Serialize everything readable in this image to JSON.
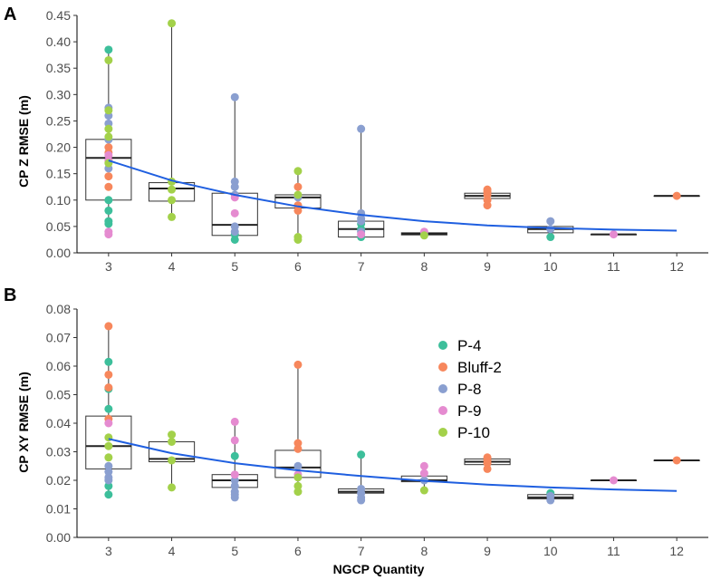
{
  "chart_data": [
    {
      "type": "box-scatter",
      "panel_label": "A",
      "ylabel": "CP Z RMSE (m)",
      "xlabel": "",
      "x_ticks": [
        3,
        4,
        5,
        6,
        7,
        8,
        9,
        10,
        11,
        12
      ],
      "ylim": [
        0,
        0.45
      ],
      "y_ticks": [
        {
          "v": 0.0,
          "label": "0.00"
        },
        {
          "v": 0.05,
          "label": "0.05"
        },
        {
          "v": 0.1,
          "label": "0.10"
        },
        {
          "v": 0.15,
          "label": "0.15"
        },
        {
          "v": 0.2,
          "label": "0.20"
        },
        {
          "v": 0.25,
          "label": "0.25"
        },
        {
          "v": 0.3,
          "label": "0.30"
        },
        {
          "v": 0.35,
          "label": "0.35"
        },
        {
          "v": 0.4,
          "label": "0.40"
        },
        {
          "v": 0.45,
          "label": "0.45"
        }
      ],
      "boxes": [
        {
          "x": 3,
          "min": 0.035,
          "q1": 0.1,
          "median": 0.18,
          "q3": 0.215,
          "max": 0.385
        },
        {
          "x": 4,
          "min": 0.068,
          "q1": 0.098,
          "median": 0.122,
          "q3": 0.133,
          "max": 0.435
        },
        {
          "x": 5,
          "min": 0.027,
          "q1": 0.033,
          "median": 0.053,
          "q3": 0.113,
          "max": 0.295
        },
        {
          "x": 6,
          "min": 0.025,
          "q1": 0.085,
          "median": 0.105,
          "q3": 0.11,
          "max": 0.155
        },
        {
          "x": 7,
          "min": 0.028,
          "q1": 0.03,
          "median": 0.045,
          "q3": 0.06,
          "max": 0.235
        },
        {
          "x": 8,
          "min": 0.033,
          "q1": 0.034,
          "median": 0.036,
          "q3": 0.038,
          "max": 0.04
        },
        {
          "x": 9,
          "min": 0.088,
          "q1": 0.103,
          "median": 0.108,
          "q3": 0.113,
          "max": 0.123
        },
        {
          "x": 10,
          "min": 0.028,
          "q1": 0.038,
          "median": 0.045,
          "q3": 0.05,
          "max": 0.06
        },
        {
          "x": 11,
          "min": 0.035,
          "q1": 0.035,
          "median": 0.035,
          "q3": 0.035,
          "max": 0.035
        },
        {
          "x": 12,
          "min": 0.108,
          "q1": 0.108,
          "median": 0.108,
          "q3": 0.108,
          "max": 0.108
        }
      ],
      "series": [
        {
          "name": "P-4",
          "values": [
            [
              3,
              0.385
            ],
            [
              3,
              0.215
            ],
            [
              3,
              0.1
            ],
            [
              3,
              0.08
            ],
            [
              3,
              0.06
            ],
            [
              3,
              0.055
            ],
            [
              5,
              0.035
            ],
            [
              5,
              0.025
            ],
            [
              7,
              0.055
            ],
            [
              7,
              0.045
            ],
            [
              7,
              0.03
            ],
            [
              8,
              0.035
            ],
            [
              10,
              0.03
            ]
          ]
        },
        {
          "name": "Bluff-2",
          "values": [
            [
              3,
              0.2
            ],
            [
              3,
              0.19
            ],
            [
              3,
              0.145
            ],
            [
              3,
              0.125
            ],
            [
              6,
              0.125
            ],
            [
              6,
              0.09
            ],
            [
              6,
              0.08
            ],
            [
              9,
              0.12
            ],
            [
              9,
              0.115
            ],
            [
              9,
              0.11
            ],
            [
              9,
              0.1
            ],
            [
              9,
              0.09
            ],
            [
              12,
              0.108
            ]
          ]
        },
        {
          "name": "P-8",
          "values": [
            [
              3,
              0.275
            ],
            [
              3,
              0.26
            ],
            [
              3,
              0.245
            ],
            [
              3,
              0.215
            ],
            [
              3,
              0.16
            ],
            [
              5,
              0.295
            ],
            [
              5,
              0.135
            ],
            [
              5,
              0.125
            ],
            [
              5,
              0.11
            ],
            [
              5,
              0.05
            ],
            [
              5,
              0.04
            ],
            [
              6,
              0.105
            ],
            [
              7,
              0.235
            ],
            [
              7,
              0.075
            ],
            [
              7,
              0.065
            ],
            [
              7,
              0.06
            ],
            [
              7,
              0.04
            ],
            [
              10,
              0.06
            ],
            [
              10,
              0.045
            ]
          ]
        },
        {
          "name": "P-9",
          "values": [
            [
              3,
              0.185
            ],
            [
              3,
              0.175
            ],
            [
              3,
              0.04
            ],
            [
              3,
              0.035
            ],
            [
              5,
              0.105
            ],
            [
              5,
              0.075
            ],
            [
              7,
              0.035
            ],
            [
              8,
              0.04
            ],
            [
              11,
              0.035
            ]
          ]
        },
        {
          "name": "P-10",
          "values": [
            [
              3,
              0.365
            ],
            [
              3,
              0.27
            ],
            [
              3,
              0.235
            ],
            [
              3,
              0.22
            ],
            [
              3,
              0.17
            ],
            [
              4,
              0.435
            ],
            [
              4,
              0.135
            ],
            [
              4,
              0.12
            ],
            [
              4,
              0.1
            ],
            [
              4,
              0.068
            ],
            [
              6,
              0.155
            ],
            [
              6,
              0.11
            ],
            [
              6,
              0.03
            ],
            [
              6,
              0.025
            ],
            [
              8,
              0.033
            ]
          ]
        }
      ],
      "trend": [
        [
          3,
          0.175
        ],
        [
          4,
          0.137
        ],
        [
          5,
          0.11
        ],
        [
          6,
          0.088
        ],
        [
          7,
          0.072
        ],
        [
          8,
          0.06
        ],
        [
          9,
          0.052
        ],
        [
          10,
          0.047
        ],
        [
          11,
          0.044
        ],
        [
          12,
          0.042
        ]
      ]
    },
    {
      "type": "box-scatter",
      "panel_label": "B",
      "ylabel": "CP XY RMSE (m)",
      "xlabel": "NGCP Quantity",
      "x_ticks": [
        3,
        4,
        5,
        6,
        7,
        8,
        9,
        10,
        11,
        12
      ],
      "ylim": [
        0,
        0.08
      ],
      "y_ticks": [
        {
          "v": 0.0,
          "label": "0.00"
        },
        {
          "v": 0.01,
          "label": "0.01"
        },
        {
          "v": 0.02,
          "label": "0.02"
        },
        {
          "v": 0.03,
          "label": "0.03"
        },
        {
          "v": 0.04,
          "label": "0.04"
        },
        {
          "v": 0.05,
          "label": "0.05"
        },
        {
          "v": 0.06,
          "label": "0.06"
        },
        {
          "v": 0.07,
          "label": "0.07"
        },
        {
          "v": 0.08,
          "label": "0.08"
        }
      ],
      "boxes": [
        {
          "x": 3,
          "min": 0.015,
          "q1": 0.024,
          "median": 0.032,
          "q3": 0.0425,
          "max": 0.074
        },
        {
          "x": 4,
          "min": 0.0175,
          "q1": 0.0265,
          "median": 0.0275,
          "q3": 0.0335,
          "max": 0.036
        },
        {
          "x": 5,
          "min": 0.014,
          "q1": 0.0175,
          "median": 0.02,
          "q3": 0.022,
          "max": 0.0405
        },
        {
          "x": 6,
          "min": 0.016,
          "q1": 0.021,
          "median": 0.0245,
          "q3": 0.0305,
          "max": 0.0605
        },
        {
          "x": 7,
          "min": 0.013,
          "q1": 0.0155,
          "median": 0.016,
          "q3": 0.017,
          "max": 0.029
        },
        {
          "x": 8,
          "min": 0.0165,
          "q1": 0.0195,
          "median": 0.02,
          "q3": 0.0215,
          "max": 0.025
        },
        {
          "x": 9,
          "min": 0.024,
          "q1": 0.0255,
          "median": 0.0265,
          "q3": 0.0275,
          "max": 0.028
        },
        {
          "x": 10,
          "min": 0.013,
          "q1": 0.0135,
          "median": 0.014,
          "q3": 0.015,
          "max": 0.0155
        },
        {
          "x": 11,
          "min": 0.02,
          "q1": 0.02,
          "median": 0.02,
          "q3": 0.02,
          "max": 0.02
        },
        {
          "x": 12,
          "min": 0.027,
          "q1": 0.027,
          "median": 0.027,
          "q3": 0.027,
          "max": 0.027
        }
      ],
      "series": [
        {
          "name": "P-4",
          "values": [
            [
              3,
              0.0615
            ],
            [
              3,
              0.052
            ],
            [
              3,
              0.045
            ],
            [
              3,
              0.018
            ],
            [
              3,
              0.015
            ],
            [
              5,
              0.0285
            ],
            [
              7,
              0.029
            ],
            [
              10,
              0.0155
            ]
          ]
        },
        {
          "name": "Bluff-2",
          "values": [
            [
              3,
              0.074
            ],
            [
              3,
              0.057
            ],
            [
              3,
              0.0525
            ],
            [
              3,
              0.0415
            ],
            [
              6,
              0.0605
            ],
            [
              6,
              0.033
            ],
            [
              6,
              0.031
            ],
            [
              9,
              0.028
            ],
            [
              9,
              0.027
            ],
            [
              9,
              0.026
            ],
            [
              9,
              0.024
            ],
            [
              12,
              0.027
            ]
          ]
        },
        {
          "name": "P-8",
          "values": [
            [
              3,
              0.025
            ],
            [
              3,
              0.023
            ],
            [
              3,
              0.021
            ],
            [
              3,
              0.02
            ],
            [
              5,
              0.02
            ],
            [
              5,
              0.018
            ],
            [
              5,
              0.016
            ],
            [
              5,
              0.015
            ],
            [
              5,
              0.014
            ],
            [
              6,
              0.025
            ],
            [
              7,
              0.017
            ],
            [
              7,
              0.0155
            ],
            [
              7,
              0.014
            ],
            [
              7,
              0.013
            ],
            [
              8,
              0.02
            ],
            [
              10,
              0.0145
            ],
            [
              10,
              0.013
            ]
          ]
        },
        {
          "name": "P-9",
          "values": [
            [
              3,
              0.04
            ],
            [
              5,
              0.0405
            ],
            [
              5,
              0.034
            ],
            [
              5,
              0.022
            ],
            [
              6,
              0.022
            ],
            [
              8,
              0.025
            ],
            [
              8,
              0.0225
            ],
            [
              11,
              0.02
            ]
          ]
        },
        {
          "name": "P-10",
          "values": [
            [
              3,
              0.035
            ],
            [
              3,
              0.032
            ],
            [
              3,
              0.028
            ],
            [
              4,
              0.036
            ],
            [
              4,
              0.0335
            ],
            [
              4,
              0.027
            ],
            [
              4,
              0.0175
            ],
            [
              6,
              0.021
            ],
            [
              6,
              0.018
            ],
            [
              6,
              0.016
            ],
            [
              8,
              0.0165
            ]
          ]
        }
      ],
      "trend": [
        [
          3,
          0.0345
        ],
        [
          4,
          0.0295
        ],
        [
          5,
          0.026
        ],
        [
          6,
          0.0235
        ],
        [
          7,
          0.0215
        ],
        [
          8,
          0.0198
        ],
        [
          9,
          0.0185
        ],
        [
          10,
          0.0175
        ],
        [
          11,
          0.0168
        ],
        [
          12,
          0.0163
        ]
      ]
    }
  ],
  "legend": [
    {
      "label": "P-4",
      "color": "#3dbf9b"
    },
    {
      "label": "Bluff-2",
      "color": "#f7875c"
    },
    {
      "label": "P-8",
      "color": "#8a9fd0"
    },
    {
      "label": "P-9",
      "color": "#e58bd0"
    },
    {
      "label": "P-10",
      "color": "#a3d14a"
    }
  ],
  "trend_color": "#1f5fe0"
}
